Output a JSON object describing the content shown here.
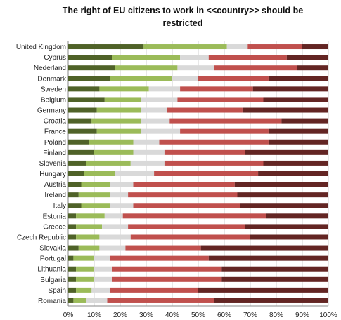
{
  "chart_data": {
    "type": "bar",
    "orientation": "horizontal",
    "stacked": "100%",
    "title": "The right of EU citizens to work in <<country>> should be restricted",
    "xlabel": "",
    "ylabel": "",
    "xlim": [
      0,
      100
    ],
    "x_ticks": [
      "0%",
      "10%",
      "20%",
      "30%",
      "40%",
      "50%",
      "60%",
      "70%",
      "80%",
      "90%",
      "100%"
    ],
    "grid": true,
    "legend": "none",
    "categories": [
      "United Kingdom",
      "Cyprus",
      "Nederland",
      "Denmark",
      "Sweden",
      "Belgium",
      "Germany",
      "Croatia",
      "France",
      "Poland",
      "Finland",
      "Slovenia",
      "Hungary",
      "Austria",
      "Ireland",
      "Italy",
      "Estonia",
      "Greece",
      "Czech Republic",
      "Slovakia",
      "Portugal",
      "Lithuania",
      "Bulgaria",
      "Spain",
      "Romania"
    ],
    "series": [
      {
        "color": "#4f6228",
        "values": [
          29,
          17,
          18,
          16,
          12,
          14,
          11,
          9,
          11,
          8,
          10,
          7,
          6,
          5,
          4,
          5,
          3,
          3,
          3,
          4,
          2,
          3,
          3,
          3,
          2
        ]
      },
      {
        "color": "#9bbb59",
        "values": [
          32,
          26,
          24,
          24,
          19,
          14,
          17,
          19,
          17,
          17,
          15,
          17,
          12,
          11,
          12,
          11,
          11,
          10,
          9,
          8,
          8,
          7,
          7,
          6,
          5
        ]
      },
      {
        "color": "#d9d9d9",
        "values": [
          8,
          11,
          14,
          10,
          12,
          14,
          10,
          11,
          15,
          10,
          12,
          13,
          15,
          9,
          7,
          9,
          7,
          10,
          12,
          10,
          6,
          7,
          7,
          7,
          8
        ]
      },
      {
        "color": "#c0504d",
        "values": [
          21,
          30,
          32,
          27,
          28,
          33,
          29,
          43,
          34,
          42,
          31,
          38,
          40,
          39,
          42,
          41,
          55,
          45,
          46,
          29,
          38,
          42,
          42,
          34,
          41
        ]
      },
      {
        "color": "#632523",
        "values": [
          10,
          16,
          12,
          23,
          29,
          25,
          33,
          18,
          23,
          23,
          32,
          25,
          27,
          36,
          35,
          34,
          24,
          32,
          30,
          49,
          46,
          41,
          41,
          50,
          44
        ]
      }
    ]
  }
}
